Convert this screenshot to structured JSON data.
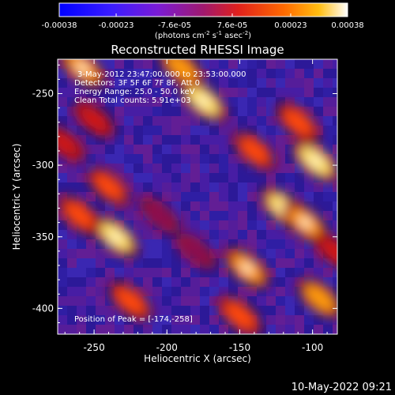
{
  "chart_data": {
    "type": "heatmap",
    "title": "Reconstructed RHESSI Image",
    "xlabel": "Heliocentric X (arcsec)",
    "ylabel": "Heliocentric Y (arcsec)",
    "xlim": [
      -275,
      -83
    ],
    "ylim": [
      -418,
      -226
    ],
    "x_ticks": [
      "-250",
      "-200",
      "-150",
      "-100"
    ],
    "y_ticks": [
      "-250",
      "-300",
      "-350",
      "-400"
    ],
    "colorbar": {
      "label": "(photons cm",
      "label_sup1": "-2",
      "label_mid": " s",
      "label_sup2": "-1",
      "label_mid2": " asec",
      "label_sup3": "-2",
      "label_end": ")",
      "ticks": [
        "-0.00038",
        "-0.00023",
        "-7.6e-05",
        "7.6e-05",
        "0.00023",
        "0.00038"
      ],
      "range": [
        -0.00038,
        0.00038
      ]
    },
    "annotations": {
      "time_range": "3-May-2012 23:47:00.000 to 23:53:00.000",
      "detectors": "Detectors: 3F 5F 6F 7F 8F, Att 0",
      "energy": "Energy Range: 25.0 - 50.0 keV",
      "clean": "Clean     Total counts: 5.91e+03",
      "peak": "Position of Peak = [-174,-258]"
    },
    "intensity_bands": [
      {
        "x": -258,
        "y": -232,
        "level": 0.9
      },
      {
        "x": -250,
        "y": -268,
        "level": 0.6
      },
      {
        "x": -240,
        "y": -315,
        "level": 0.7
      },
      {
        "x": -260,
        "y": -335,
        "level": 0.8
      },
      {
        "x": -235,
        "y": -350,
        "level": 0.95
      },
      {
        "x": -225,
        "y": -395,
        "level": 0.75
      },
      {
        "x": -175,
        "y": -255,
        "level": 1.0
      },
      {
        "x": -190,
        "y": -232,
        "level": 0.85
      },
      {
        "x": -140,
        "y": -290,
        "level": 0.7
      },
      {
        "x": -110,
        "y": -270,
        "level": 0.75
      },
      {
        "x": -98,
        "y": -297,
        "level": 1.0
      },
      {
        "x": -120,
        "y": -330,
        "level": 0.95
      },
      {
        "x": -105,
        "y": -340,
        "level": 0.9
      },
      {
        "x": -145,
        "y": -372,
        "level": 0.9
      },
      {
        "x": -95,
        "y": -393,
        "level": 0.85
      },
      {
        "x": -150,
        "y": -405,
        "level": 0.8
      },
      {
        "x": -270,
        "y": -285,
        "level": 0.55
      },
      {
        "x": -205,
        "y": -335,
        "level": 0.5
      },
      {
        "x": -180,
        "y": -360,
        "level": 0.45
      },
      {
        "x": -85,
        "y": -360,
        "level": 0.6
      }
    ]
  },
  "footer": {
    "date": "10-May-2022 09:21"
  }
}
